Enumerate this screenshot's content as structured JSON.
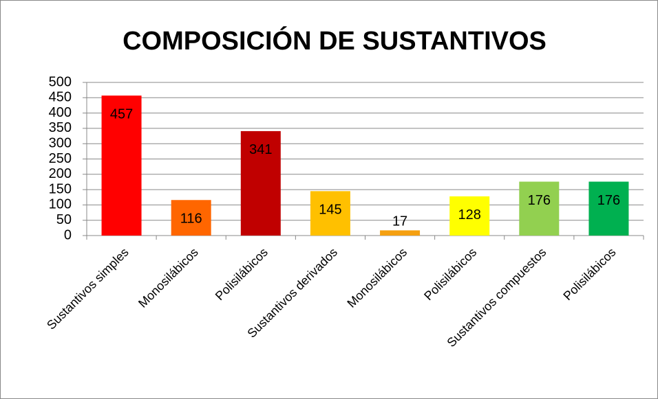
{
  "chart_data": {
    "type": "bar",
    "title": "COMPOSICIÓN DE SUSTANTIVOS",
    "categories": [
      "Sustantivos simples",
      "Monosilábicos",
      "Polisilábicos",
      "Sustantivos derivados",
      "Monosilábicos",
      "Polisilábicos",
      "Sustantivos compuestos",
      "Polisilábicos"
    ],
    "values": [
      457,
      116,
      341,
      145,
      17,
      128,
      176,
      176
    ],
    "colors": [
      "#ff0000",
      "#ff6600",
      "#c00000",
      "#ffc000",
      "#f5a011",
      "#ffff00",
      "#92d050",
      "#00b050"
    ],
    "ylim": [
      0,
      500
    ],
    "yticks": [
      0,
      50,
      100,
      150,
      200,
      250,
      300,
      350,
      400,
      450,
      500
    ],
    "grid": true
  }
}
